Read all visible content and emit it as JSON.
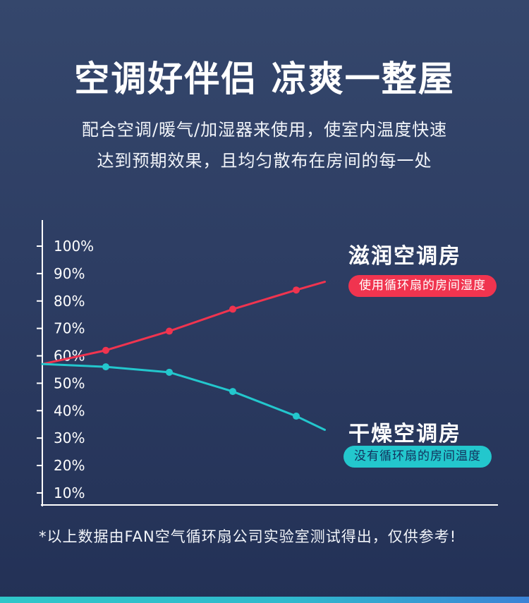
{
  "page": {
    "title": "空调好伴侣 凉爽一整屋",
    "subtitle_lines": [
      "配合空调/暖气/加湿器来使用，使室内温度快速",
      "达到预期效果，且均匀散布在房间的每一处"
    ],
    "footnote": "*以上数据由FAN空气循环扇公司实验室测试得出，仅供参考!"
  },
  "legend": {
    "humid": {
      "title": "滋润空调房",
      "badge": "使用循环扇的房间湿度",
      "badge_bg": "#f0344f",
      "badge_text": "#ffffff"
    },
    "dry": {
      "title": "干燥空调房",
      "badge": "没有循环扇的房间温度",
      "badge_bg": "#23c7cd",
      "badge_text": "#12305c"
    }
  },
  "colors": {
    "background_top": "#35476c",
    "background_bottom": "#233156",
    "axis": "#ffffff",
    "accent_bar_left": "#2fc7c9",
    "accent_bar_right": "#3b82d6"
  },
  "chart_data": {
    "type": "line",
    "title": "",
    "xlabel": "",
    "ylabel": "",
    "y_ticks": [
      "100%",
      "90%",
      "80%",
      "70%",
      "60%",
      "50%",
      "40%",
      "30%",
      "20%",
      "10%"
    ],
    "ylim": [
      0,
      100
    ],
    "grid": false,
    "legend_position": "right",
    "axis_color": "#ffffff",
    "x": [
      0,
      1,
      2,
      3,
      4,
      4.45
    ],
    "series": [
      {
        "key": "humid",
        "name": "使用循环扇的房间湿度",
        "color": "#f0344f",
        "values": [
          57,
          62,
          69,
          77,
          84,
          87
        ],
        "marker_indices": [
          1,
          2,
          3,
          4
        ]
      },
      {
        "key": "dry",
        "name": "没有循环扇的房间温度",
        "color": "#23c7cd",
        "values": [
          57,
          56,
          54,
          47,
          38,
          33
        ],
        "marker_indices": [
          1,
          2,
          3,
          4
        ]
      }
    ]
  }
}
